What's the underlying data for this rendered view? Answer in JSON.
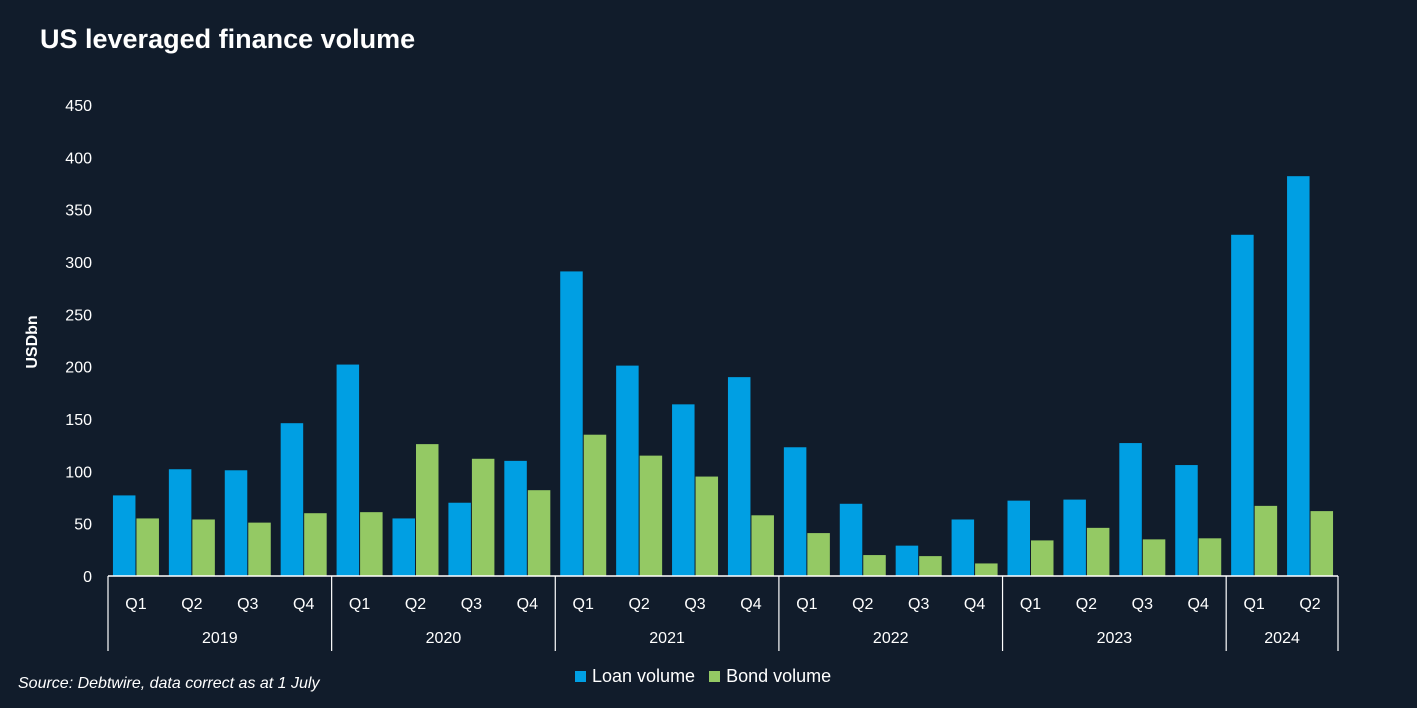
{
  "colors": {
    "loan": "#009fe3",
    "bond": "#94c964",
    "background": "#111c2b",
    "axis": "#ffffff"
  },
  "title": "US leveraged finance volume",
  "source": "Source: Debtwire, data correct as at 1 July",
  "chart_data": {
    "type": "bar",
    "title": "US leveraged finance volume",
    "ylabel": "USDbn",
    "xlabel": "",
    "ylim": [
      0,
      450
    ],
    "yticks": [
      0,
      50,
      100,
      150,
      200,
      250,
      300,
      350,
      400,
      450
    ],
    "grid": false,
    "legend": "bottom-center",
    "categories": [
      {
        "quarter": "Q1",
        "year": "2019"
      },
      {
        "quarter": "Q2",
        "year": "2019"
      },
      {
        "quarter": "Q3",
        "year": "2019"
      },
      {
        "quarter": "Q4",
        "year": "2019"
      },
      {
        "quarter": "Q1",
        "year": "2020"
      },
      {
        "quarter": "Q2",
        "year": "2020"
      },
      {
        "quarter": "Q3",
        "year": "2020"
      },
      {
        "quarter": "Q4",
        "year": "2020"
      },
      {
        "quarter": "Q1",
        "year": "2021"
      },
      {
        "quarter": "Q2",
        "year": "2021"
      },
      {
        "quarter": "Q3",
        "year": "2021"
      },
      {
        "quarter": "Q4",
        "year": "2021"
      },
      {
        "quarter": "Q1",
        "year": "2022"
      },
      {
        "quarter": "Q2",
        "year": "2022"
      },
      {
        "quarter": "Q3",
        "year": "2022"
      },
      {
        "quarter": "Q4",
        "year": "2022"
      },
      {
        "quarter": "Q1",
        "year": "2023"
      },
      {
        "quarter": "Q2",
        "year": "2023"
      },
      {
        "quarter": "Q3",
        "year": "2023"
      },
      {
        "quarter": "Q4",
        "year": "2023"
      },
      {
        "quarter": "Q1",
        "year": "2024"
      },
      {
        "quarter": "Q2",
        "year": "2024"
      }
    ],
    "years": [
      "2019",
      "2020",
      "2021",
      "2022",
      "2023",
      "2024"
    ],
    "series": [
      {
        "name": "Loan volume",
        "color_key": "loan",
        "values": [
          77,
          102,
          101,
          146,
          202,
          55,
          70,
          110,
          291,
          201,
          164,
          190,
          123,
          69,
          29,
          54,
          72,
          73,
          127,
          106,
          326,
          382
        ]
      },
      {
        "name": "Bond volume",
        "color_key": "bond",
        "values": [
          55,
          54,
          51,
          60,
          61,
          126,
          112,
          82,
          135,
          115,
          95,
          58,
          41,
          20,
          19,
          12,
          34,
          46,
          35,
          36,
          67,
          62
        ]
      }
    ]
  }
}
